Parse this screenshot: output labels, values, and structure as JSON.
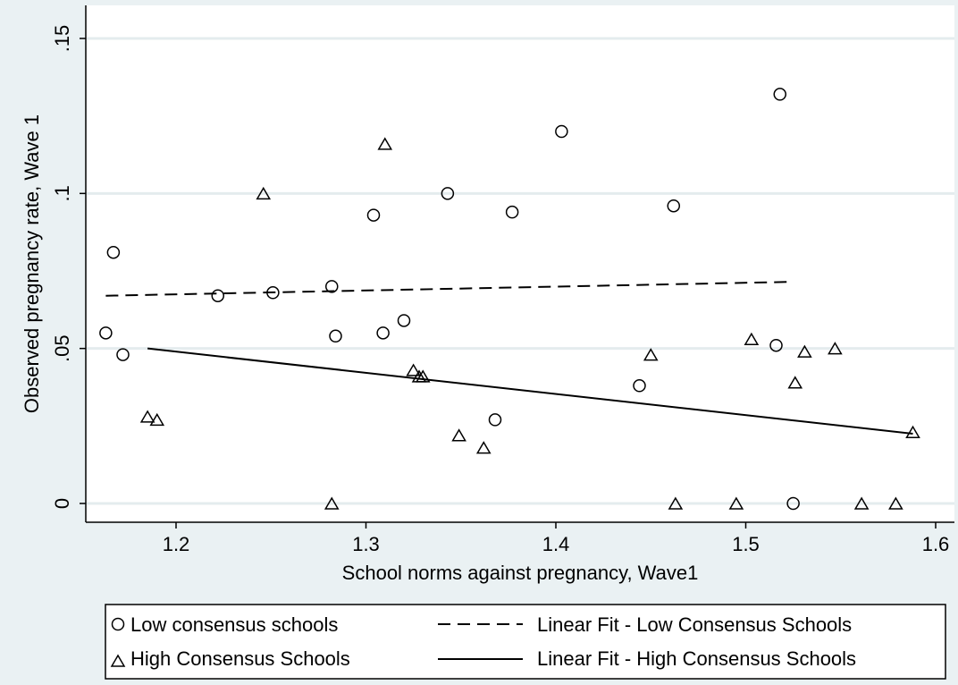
{
  "chart_data": {
    "type": "scatter",
    "xlabel": "School norms against pregnancy, Wave1",
    "ylabel": "Observed pregnancy rate, Wave 1",
    "xlim": [
      1.16,
      1.62
    ],
    "ylim": [
      0,
      0.15
    ],
    "x_ticks": [
      {
        "value": 1.2,
        "label": "1.2"
      },
      {
        "value": 1.3,
        "label": "1.3"
      },
      {
        "value": 1.4,
        "label": "1.4"
      },
      {
        "value": 1.5,
        "label": "1.5"
      },
      {
        "value": 1.6,
        "label": "1.6"
      }
    ],
    "y_ticks": [
      {
        "value": 0,
        "label": "0"
      },
      {
        "value": 0.05,
        "label": ".05"
      },
      {
        "value": 0.1,
        "label": ".1"
      },
      {
        "value": 0.15,
        "label": ".15"
      }
    ],
    "grid": "horizontal",
    "legend_position": "bottom",
    "series": [
      {
        "name": "Low consensus schools",
        "marker": "circle",
        "points": [
          [
            1.163,
            0.055
          ],
          [
            1.167,
            0.081
          ],
          [
            1.172,
            0.048
          ],
          [
            1.222,
            0.067
          ],
          [
            1.251,
            0.068
          ],
          [
            1.282,
            0.07
          ],
          [
            1.284,
            0.054
          ],
          [
            1.304,
            0.093
          ],
          [
            1.309,
            0.055
          ],
          [
            1.32,
            0.059
          ],
          [
            1.343,
            0.1
          ],
          [
            1.368,
            0.027
          ],
          [
            1.377,
            0.094
          ],
          [
            1.403,
            0.12
          ],
          [
            1.444,
            0.038
          ],
          [
            1.462,
            0.096
          ],
          [
            1.516,
            0.051
          ],
          [
            1.518,
            0.132
          ],
          [
            1.525,
            0.0
          ]
        ]
      },
      {
        "name": "High Consensus Schools",
        "marker": "triangle",
        "points": [
          [
            1.185,
            0.028
          ],
          [
            1.19,
            0.027
          ],
          [
            1.246,
            0.1
          ],
          [
            1.282,
            0.0
          ],
          [
            1.31,
            0.116
          ],
          [
            1.325,
            0.043
          ],
          [
            1.328,
            0.041
          ],
          [
            1.33,
            0.041
          ],
          [
            1.349,
            0.022
          ],
          [
            1.362,
            0.018
          ],
          [
            1.45,
            0.048
          ],
          [
            1.463,
            0.0
          ],
          [
            1.495,
            0.0
          ],
          [
            1.503,
            0.053
          ],
          [
            1.526,
            0.039
          ],
          [
            1.531,
            0.049
          ],
          [
            1.547,
            0.05
          ],
          [
            1.561,
            0.0
          ],
          [
            1.579,
            0.0
          ],
          [
            1.588,
            0.023
          ]
        ]
      },
      {
        "name": "Linear Fit - Low Consensus Schools",
        "type": "line",
        "style": "dashed",
        "points": [
          [
            1.163,
            0.067
          ],
          [
            1.525,
            0.0715
          ]
        ]
      },
      {
        "name": "Linear Fit - High Consensus Schools",
        "type": "line",
        "style": "solid",
        "points": [
          [
            1.185,
            0.05
          ],
          [
            1.588,
            0.0225
          ]
        ]
      }
    ]
  }
}
